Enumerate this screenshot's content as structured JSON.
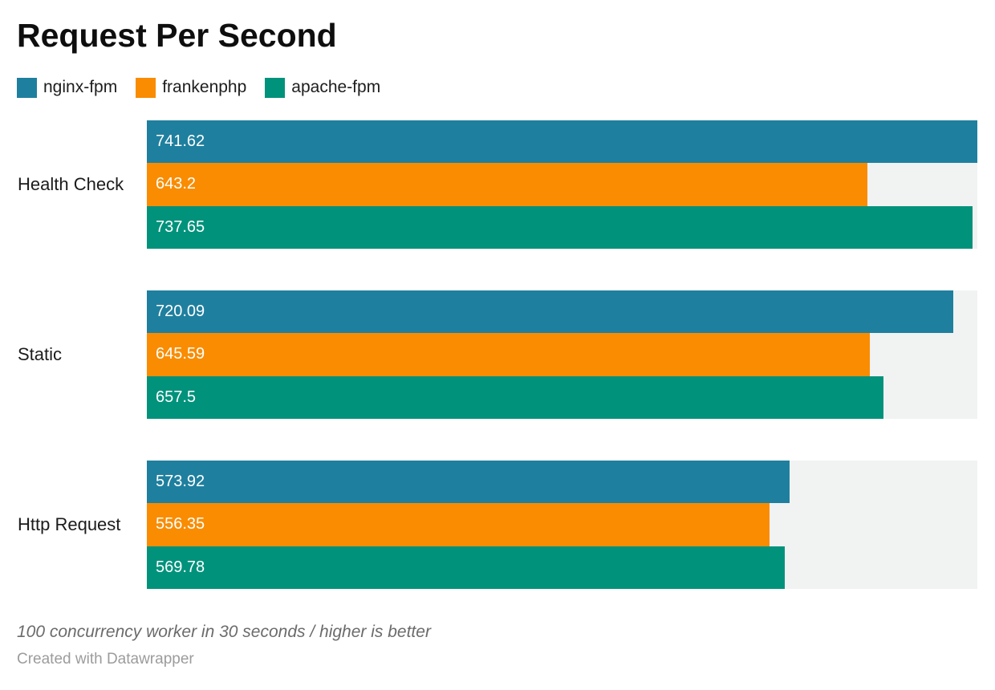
{
  "title": "Request Per Second",
  "chart_data": {
    "type": "bar",
    "orientation": "horizontal",
    "title": "Request Per Second",
    "categories": [
      "Health Check",
      "Static",
      "Http Request"
    ],
    "series": [
      {
        "name": "nginx-fpm",
        "color": "#1f7f9e",
        "values": [
          741.62,
          720.09,
          573.92
        ]
      },
      {
        "name": "frankenphp",
        "color": "#f98c00",
        "values": [
          643.2,
          645.59,
          556.35
        ]
      },
      {
        "name": "apache-fpm",
        "color": "#00927b",
        "values": [
          737.65,
          657.5,
          569.78
        ]
      }
    ],
    "xlim": [
      0,
      741.62
    ],
    "value_labels_position": "inside-left",
    "legend_position": "top",
    "grid": false,
    "track_color": "#f1f2f2",
    "value_label_color": "#ffffff"
  },
  "footer": {
    "note": "100 concurrency worker in 30 seconds / higher is better",
    "attribution": "Created with Datawrapper"
  }
}
